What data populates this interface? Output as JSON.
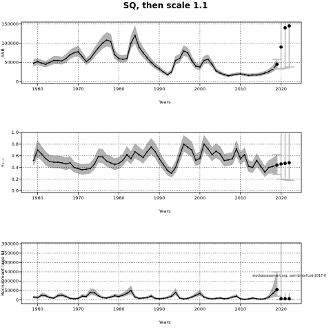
{
  "title": "SQ, then scale 1.1",
  "chart_data": [
    {
      "type": "line",
      "ylabel": "SSB",
      "xlabel": "Years",
      "xlim": [
        1956,
        2025
      ],
      "ylim": [
        -5000,
        155000
      ],
      "xticks": [
        1960,
        1970,
        1980,
        1990,
        2000,
        2010,
        2020
      ],
      "yticks": [
        0,
        50000,
        100000,
        150000
      ],
      "grid": true,
      "x": [
        1959,
        1960,
        1961,
        1962,
        1963,
        1964,
        1965,
        1966,
        1967,
        1968,
        1969,
        1970,
        1971,
        1972,
        1973,
        1974,
        1975,
        1976,
        1977,
        1978,
        1979,
        1980,
        1981,
        1982,
        1983,
        1984,
        1985,
        1986,
        1987,
        1988,
        1989,
        1990,
        1991,
        1992,
        1993,
        1994,
        1995,
        1996,
        1997,
        1998,
        1999,
        2000,
        2001,
        2002,
        2003,
        2004,
        2005,
        2006,
        2007,
        2008,
        2009,
        2010,
        2011,
        2012,
        2013,
        2014,
        2015,
        2016,
        2017,
        2018,
        2019
      ],
      "values": [
        48000,
        52000,
        48000,
        45000,
        50000,
        55000,
        55000,
        54000,
        60000,
        70000,
        75000,
        78000,
        65000,
        52000,
        60000,
        75000,
        88000,
        100000,
        108000,
        105000,
        70000,
        60000,
        58000,
        60000,
        100000,
        120000,
        90000,
        75000,
        62000,
        50000,
        40000,
        33000,
        25000,
        18000,
        25000,
        55000,
        60000,
        80000,
        75000,
        55000,
        40000,
        38000,
        55000,
        58000,
        45000,
        28000,
        22000,
        18000,
        15000,
        17000,
        19000,
        20000,
        18000,
        16000,
        17000,
        17000,
        19000,
        22000,
        26000,
        33000,
        45000
      ],
      "lower": [
        40000,
        45000,
        40000,
        38000,
        42000,
        46000,
        46000,
        45000,
        50000,
        60000,
        64000,
        67000,
        55000,
        44000,
        51000,
        64000,
        76000,
        86000,
        92000,
        90000,
        60000,
        51000,
        50000,
        52000,
        86000,
        100000,
        76000,
        63000,
        52000,
        42000,
        33000,
        27000,
        20000,
        14000,
        20000,
        45000,
        50000,
        68000,
        64000,
        46000,
        33000,
        31000,
        46000,
        48000,
        37000,
        23000,
        18000,
        15000,
        12000,
        14000,
        16000,
        17000,
        15000,
        13000,
        14000,
        14000,
        15000,
        18000,
        21000,
        26000,
        34000
      ],
      "upper": [
        57000,
        60000,
        56000,
        53000,
        59000,
        66000,
        66000,
        64000,
        71000,
        82000,
        88000,
        92000,
        77000,
        61000,
        70000,
        88000,
        103000,
        118000,
        128000,
        124000,
        82000,
        70000,
        68000,
        70000,
        118000,
        145000,
        107000,
        89000,
        74000,
        60000,
        48000,
        40000,
        30000,
        23000,
        31000,
        66000,
        71000,
        94000,
        88000,
        66000,
        48000,
        46000,
        66000,
        70000,
        54000,
        34000,
        27000,
        22000,
        19000,
        21000,
        23000,
        24000,
        22000,
        20000,
        21000,
        21000,
        24000,
        27000,
        32000,
        42000,
        58000
      ],
      "projection": {
        "x": [
          2020,
          2021,
          2022
        ],
        "values": [
          90000,
          140000,
          145000
        ],
        "ci": [
          [
            33000,
            165000
          ],
          [
            35000,
            165000
          ],
          [
            38000,
            165000
          ]
        ]
      }
    },
    {
      "type": "line",
      "ylabel": "F₁₋₇",
      "xlabel": "Years",
      "xlim": [
        1956,
        2025
      ],
      "ylim": [
        -0.03,
        1.0
      ],
      "xticks": [
        1960,
        1970,
        1980,
        1990,
        2000,
        2010,
        2020
      ],
      "yticks": [
        "0.0",
        "0.2",
        "0.4",
        "0.6",
        "0.8",
        "1.0"
      ],
      "grid": true,
      "x": [
        1959,
        1960,
        1961,
        1962,
        1963,
        1964,
        1965,
        1966,
        1967,
        1968,
        1969,
        1970,
        1971,
        1972,
        1973,
        1974,
        1975,
        1976,
        1977,
        1978,
        1979,
        1980,
        1981,
        1982,
        1983,
        1984,
        1985,
        1986,
        1987,
        1988,
        1989,
        1990,
        1991,
        1992,
        1993,
        1994,
        1995,
        1996,
        1997,
        1998,
        1999,
        2000,
        2001,
        2002,
        2003,
        2004,
        2005,
        2006,
        2007,
        2008,
        2009,
        2010,
        2011,
        2012,
        2013,
        2014,
        2015,
        2016,
        2017,
        2018,
        2019
      ],
      "values": [
        0.52,
        0.7,
        0.63,
        0.55,
        0.5,
        0.49,
        0.49,
        0.48,
        0.46,
        0.48,
        0.4,
        0.38,
        0.36,
        0.37,
        0.38,
        0.46,
        0.59,
        0.58,
        0.51,
        0.48,
        0.45,
        0.47,
        0.52,
        0.62,
        0.55,
        0.67,
        0.62,
        0.57,
        0.67,
        0.75,
        0.67,
        0.55,
        0.45,
        0.35,
        0.3,
        0.4,
        0.6,
        0.8,
        0.75,
        0.7,
        0.52,
        0.56,
        0.8,
        0.72,
        0.62,
        0.68,
        0.63,
        0.52,
        0.53,
        0.55,
        0.72,
        0.55,
        0.62,
        0.42,
        0.4,
        0.52,
        0.42,
        0.32,
        0.4,
        0.42,
        0.44
      ],
      "lower": [
        0.44,
        0.58,
        0.52,
        0.44,
        0.4,
        0.39,
        0.39,
        0.38,
        0.36,
        0.38,
        0.32,
        0.3,
        0.28,
        0.29,
        0.3,
        0.37,
        0.49,
        0.48,
        0.42,
        0.39,
        0.36,
        0.38,
        0.43,
        0.52,
        0.46,
        0.56,
        0.52,
        0.47,
        0.56,
        0.63,
        0.56,
        0.45,
        0.36,
        0.27,
        0.23,
        0.31,
        0.49,
        0.68,
        0.63,
        0.58,
        0.43,
        0.46,
        0.67,
        0.6,
        0.51,
        0.57,
        0.52,
        0.42,
        0.43,
        0.45,
        0.6,
        0.45,
        0.51,
        0.33,
        0.31,
        0.42,
        0.33,
        0.24,
        0.3,
        0.3,
        0.28
      ],
      "upper": [
        0.62,
        0.86,
        0.76,
        0.67,
        0.61,
        0.6,
        0.6,
        0.59,
        0.57,
        0.59,
        0.5,
        0.47,
        0.45,
        0.46,
        0.47,
        0.57,
        0.72,
        0.71,
        0.62,
        0.59,
        0.55,
        0.57,
        0.63,
        0.76,
        0.67,
        0.81,
        0.75,
        0.69,
        0.81,
        0.9,
        0.81,
        0.67,
        0.55,
        0.44,
        0.38,
        0.5,
        0.73,
        0.95,
        0.9,
        0.84,
        0.63,
        0.67,
        0.95,
        0.86,
        0.74,
        0.81,
        0.76,
        0.63,
        0.64,
        0.66,
        0.86,
        0.66,
        0.74,
        0.52,
        0.5,
        0.64,
        0.53,
        0.42,
        0.52,
        0.56,
        0.62
      ],
      "projection": {
        "x": [
          2020,
          2021,
          2022
        ],
        "values": [
          0.46,
          0.47,
          0.48
        ],
        "ci": [
          [
            0.2,
            0.98
          ],
          [
            0.19,
            0.98
          ],
          [
            0.18,
            0.98
          ]
        ]
      }
    },
    {
      "type": "line",
      "ylabel": "Recruitment (age 1)",
      "xlabel": "Years",
      "xlim": [
        1956,
        2025
      ],
      "ylim": [
        -20000,
        305000
      ],
      "xticks": [
        1960,
        1970,
        1980,
        1990,
        2000,
        2010,
        2020
      ],
      "yticks": [
        0,
        50000,
        100000,
        150000,
        200000,
        250000,
        300000
      ],
      "grid": true,
      "annotation": "stockassessment.org, sam-bmb-fcod-2017-0",
      "x": [
        1959,
        1960,
        1961,
        1962,
        1963,
        1964,
        1965,
        1966,
        1967,
        1968,
        1969,
        1970,
        1971,
        1972,
        1973,
        1974,
        1975,
        1976,
        1977,
        1978,
        1979,
        1980,
        1981,
        1982,
        1983,
        1984,
        1985,
        1986,
        1987,
        1988,
        1989,
        1990,
        1991,
        1992,
        1993,
        1994,
        1995,
        1996,
        1997,
        1998,
        1999,
        2000,
        2001,
        2002,
        2003,
        2004,
        2005,
        2006,
        2007,
        2008,
        2009,
        2010,
        2011,
        2012,
        2013,
        2014,
        2015,
        2016,
        2017,
        2018,
        2019
      ],
      "values": [
        15000,
        12000,
        25000,
        22000,
        12000,
        10000,
        22000,
        25000,
        18000,
        8000,
        6000,
        8000,
        20000,
        18000,
        40000,
        38000,
        22000,
        12000,
        10000,
        15000,
        22000,
        18000,
        25000,
        35000,
        50000,
        15000,
        8000,
        10000,
        12000,
        20000,
        8000,
        6000,
        8000,
        12000,
        20000,
        40000,
        10000,
        5000,
        8000,
        15000,
        25000,
        35000,
        15000,
        8000,
        5000,
        8000,
        10000,
        6000,
        8000,
        15000,
        20000,
        6000,
        3000,
        5000,
        10000,
        6000,
        4000,
        6000,
        15000,
        35000,
        55000
      ],
      "lower": [
        10000,
        8000,
        17000,
        15000,
        8000,
        6000,
        15000,
        17000,
        12000,
        5000,
        3000,
        5000,
        13000,
        12000,
        27000,
        25000,
        15000,
        8000,
        6000,
        10000,
        15000,
        12000,
        17000,
        24000,
        33000,
        10000,
        5000,
        6000,
        8000,
        13000,
        5000,
        3000,
        5000,
        8000,
        13000,
        26000,
        6000,
        3000,
        5000,
        10000,
        17000,
        23000,
        10000,
        5000,
        3000,
        5000,
        6000,
        3000,
        5000,
        10000,
        13000,
        3000,
        1000,
        3000,
        6000,
        3000,
        2000,
        3000,
        8000,
        15000,
        20000
      ],
      "upper": [
        22000,
        18000,
        36000,
        32000,
        18000,
        15000,
        32000,
        36000,
        26000,
        13000,
        10000,
        13000,
        30000,
        27000,
        60000,
        57000,
        33000,
        18000,
        15000,
        22000,
        32000,
        27000,
        37000,
        52000,
        75000,
        23000,
        13000,
        15000,
        18000,
        30000,
        13000,
        10000,
        13000,
        18000,
        30000,
        60000,
        15000,
        9000,
        13000,
        22000,
        37000,
        52000,
        22000,
        13000,
        9000,
        13000,
        15000,
        10000,
        13000,
        22000,
        30000,
        10000,
        6000,
        9000,
        15000,
        10000,
        7000,
        10000,
        25000,
        70000,
        150000
      ],
      "projection": {
        "x": [
          2020,
          2021,
          2022
        ],
        "values": [
          6000,
          6000,
          6000
        ],
        "ci": [
          [
            3000,
            300000
          ],
          [
            3000,
            35000
          ],
          [
            3000,
            35000
          ]
        ]
      }
    }
  ]
}
